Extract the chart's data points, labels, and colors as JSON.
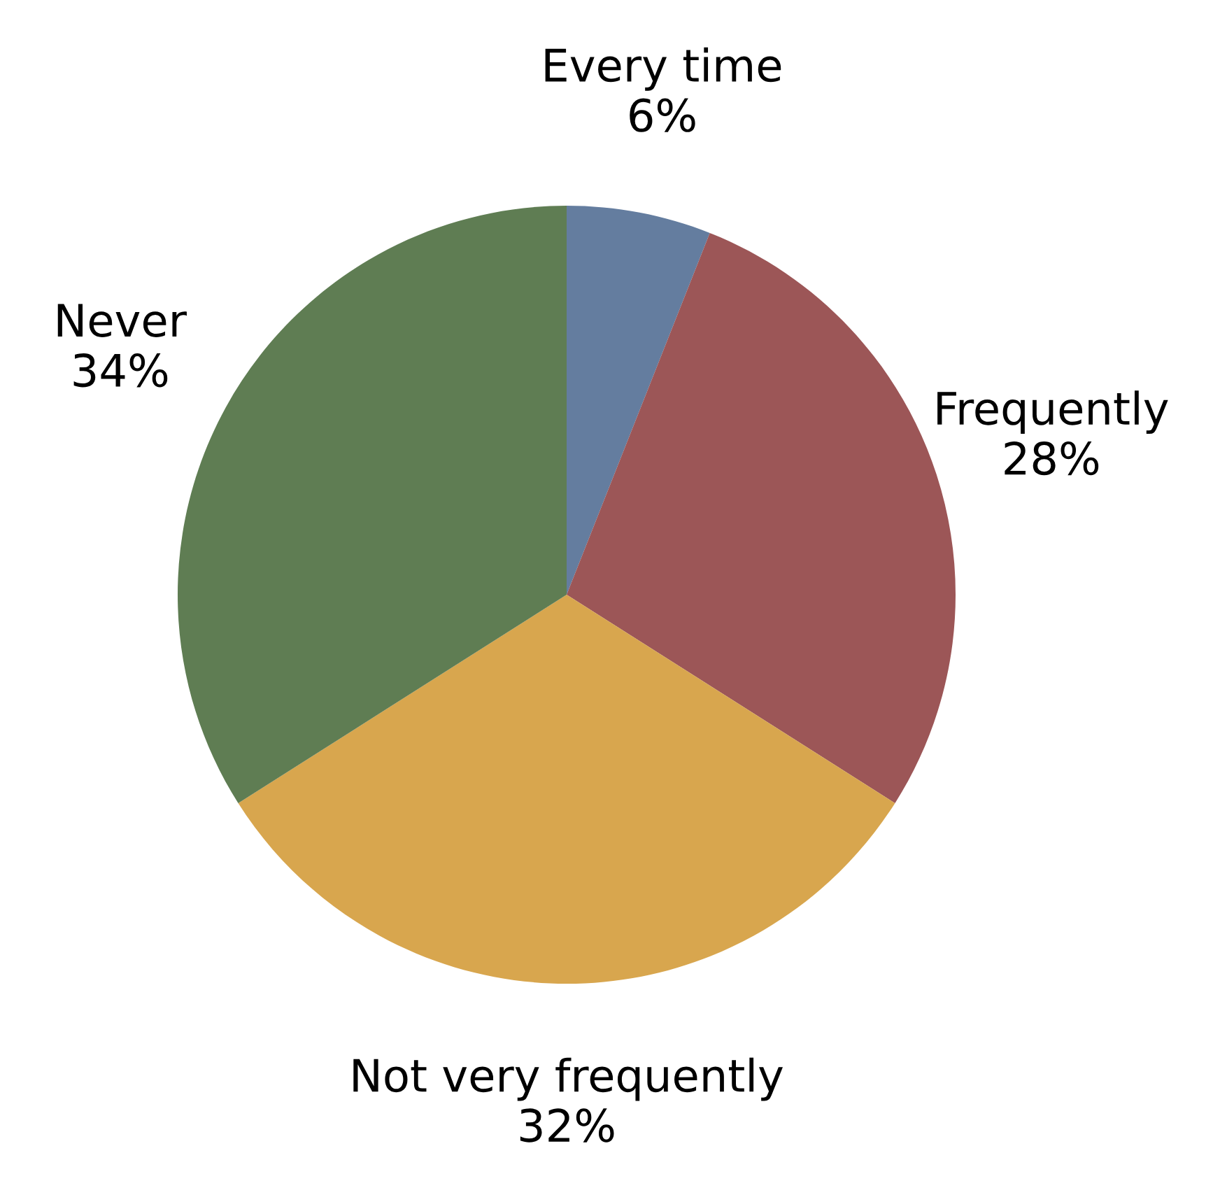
{
  "chart_data": {
    "type": "pie",
    "categories": [
      "Every time",
      "Frequently",
      "Not very frequently",
      "Never"
    ],
    "values": [
      6,
      28,
      32,
      34
    ],
    "value_labels": [
      "6%",
      "28%",
      "32%",
      "34%"
    ],
    "colors": [
      "#647d9f",
      "#9c5657",
      "#d8a64e",
      "#5f7d53"
    ],
    "legend": false
  }
}
